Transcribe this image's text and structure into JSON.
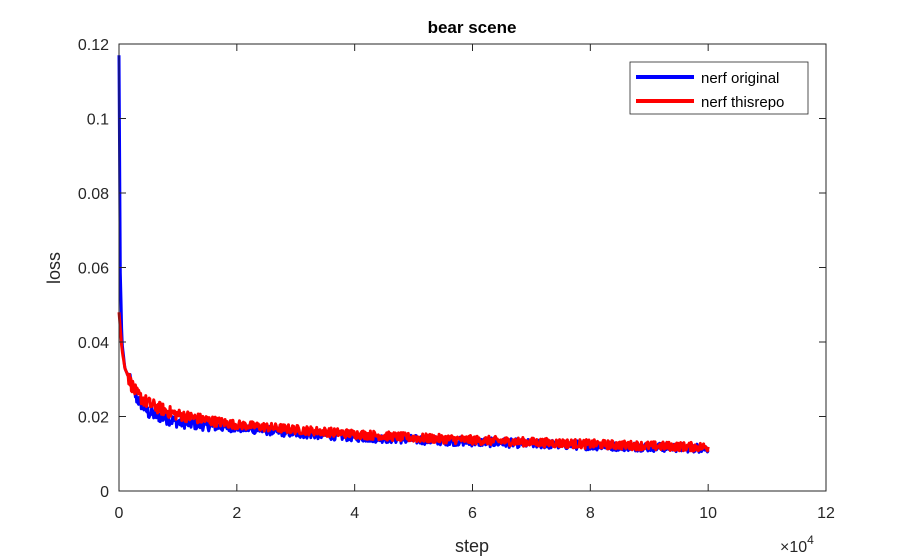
{
  "chart_data": {
    "type": "line",
    "title": "bear scene",
    "xlabel": "step",
    "ylabel": "loss",
    "x_exponent_label": "×10",
    "x_exponent_power": "4",
    "xlim": [
      0,
      12
    ],
    "ylim": [
      0,
      0.12
    ],
    "x_ticks": [
      "0",
      "2",
      "4",
      "6",
      "8",
      "10",
      "12"
    ],
    "y_ticks": [
      "0",
      "0.02",
      "0.04",
      "0.06",
      "0.08",
      "0.1",
      "0.12"
    ],
    "legend_position": "top-right",
    "series": [
      {
        "name": "nerf original",
        "color": "#0000ff",
        "x": [
          0,
          0.02,
          0.05,
          0.1,
          0.15,
          0.2,
          0.3,
          0.5,
          0.8,
          1,
          1.5,
          2,
          3,
          4,
          5,
          6,
          7,
          8,
          9,
          10
        ],
        "y": [
          0.117,
          0.06,
          0.04,
          0.033,
          0.031,
          0.029,
          0.025,
          0.021,
          0.0195,
          0.0185,
          0.0175,
          0.017,
          0.0155,
          0.0145,
          0.0138,
          0.0132,
          0.0127,
          0.0122,
          0.0118,
          0.0115
        ]
      },
      {
        "name": "nerf thisrepo",
        "color": "#ff0000",
        "x": [
          0,
          0.02,
          0.05,
          0.1,
          0.15,
          0.2,
          0.3,
          0.5,
          0.8,
          1,
          1.5,
          2,
          3,
          4,
          5,
          6,
          7,
          8,
          9,
          10
        ],
        "y": [
          0.048,
          0.044,
          0.038,
          0.033,
          0.031,
          0.029,
          0.026,
          0.0235,
          0.0215,
          0.0205,
          0.019,
          0.0178,
          0.0165,
          0.0153,
          0.0143,
          0.0137,
          0.0131,
          0.0126,
          0.0121,
          0.0118
        ]
      }
    ],
    "noise_amplitude": 0.0012
  }
}
